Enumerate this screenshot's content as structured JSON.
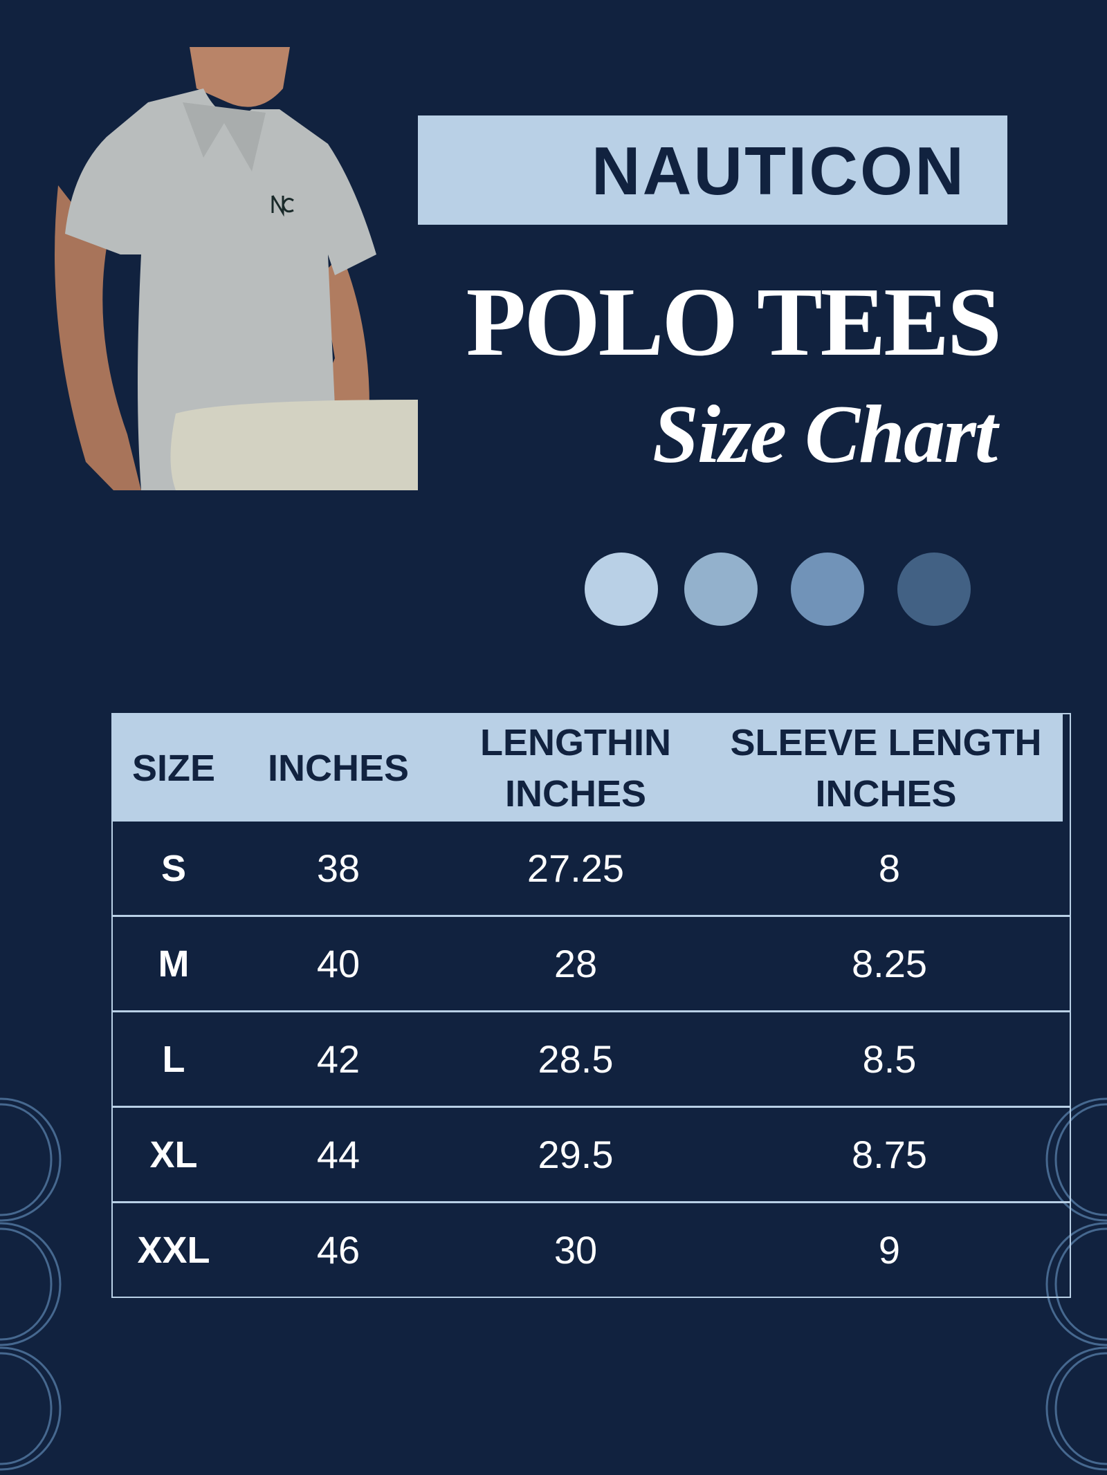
{
  "brand": "NAUTICON",
  "title": "POLO TEES",
  "subtitle": "Size Chart",
  "colors": {
    "background": "#11223f",
    "accent_light": "#b9d0e6",
    "swatches": [
      "#b9d0e6",
      "#93b1cc",
      "#7193b8",
      "#426184"
    ]
  },
  "table": {
    "headers": [
      "SIZE",
      "INCHES",
      "LENGTHIN INCHES",
      "SLEEVE LENGTH INCHES"
    ],
    "rows": [
      [
        "S",
        "38",
        "27.25",
        "8"
      ],
      [
        "M",
        "40",
        "28",
        "8.25"
      ],
      [
        "L",
        "42",
        "28.5",
        "8.5"
      ],
      [
        "XL",
        "44",
        "29.5",
        "8.75"
      ],
      [
        "XXL",
        "46",
        "30",
        "9"
      ]
    ]
  }
}
